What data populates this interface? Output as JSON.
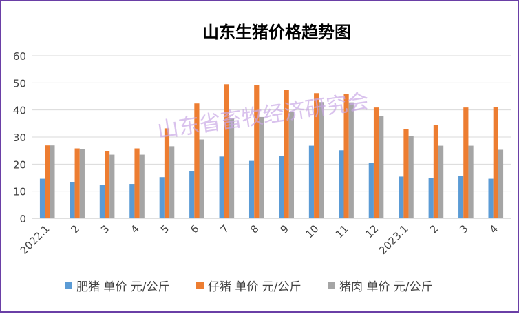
{
  "chart_data": {
    "type": "bar",
    "title": "山东生猪价格趋势图",
    "watermark": "山东省畜牧经济研究会",
    "categories": [
      "2022.1",
      "2",
      "3",
      "4",
      "5",
      "6",
      "7",
      "8",
      "9",
      "10",
      "11",
      "12",
      "2023.1",
      "2",
      "3",
      "4"
    ],
    "series": [
      {
        "name": "肥猪 单价 元/公斤",
        "color": "#5b9bd5",
        "values": [
          14.6,
          13.4,
          12.4,
          12.7,
          15.2,
          17.4,
          22.8,
          21.2,
          23.1,
          26.8,
          25.1,
          20.5,
          15.4,
          14.9,
          15.6,
          14.6
        ]
      },
      {
        "name": "仔猪 单价 元/公斤",
        "color": "#ed7d31",
        "values": [
          26.9,
          25.8,
          24.8,
          25.8,
          33.2,
          42.4,
          49.5,
          49.1,
          47.5,
          46.2,
          45.8,
          40.9,
          33.0,
          34.5,
          40.9,
          41.0
        ]
      },
      {
        "name": "猪肉 单价 元/公斤",
        "color": "#a5a5a5",
        "values": [
          26.9,
          25.6,
          23.5,
          23.5,
          26.6,
          29.1,
          37.1,
          37.4,
          39.3,
          42.9,
          42.8,
          37.8,
          30.3,
          26.8,
          26.8,
          25.3
        ]
      }
    ],
    "ylim": [
      0,
      60
    ],
    "yticks": [
      0,
      10,
      20,
      30,
      40,
      50,
      60
    ],
    "grid": true,
    "legend_position": "bottom"
  }
}
